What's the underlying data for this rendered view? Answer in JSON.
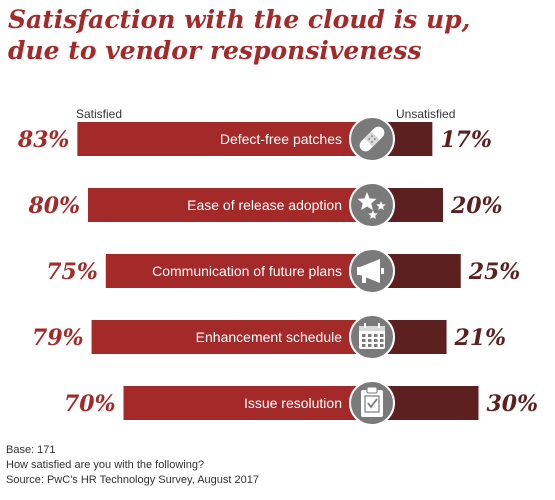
{
  "title_line1": "Satisfaction with the cloud is up,",
  "title_line2": "due to vendor responsiveness",
  "labels": {
    "satisfied": "Satisfied",
    "unsatisfied": "Unsatisfied"
  },
  "colors": {
    "satisfied": "#a42a2a",
    "unsatisfied": "#5c2020",
    "icon_circle": "#7a7a7a",
    "title": "#a42a2a"
  },
  "chart_data": {
    "type": "bar",
    "orientation": "horizontal-diverging",
    "categories": [
      "Defect-free patches",
      "Ease of release adoption",
      "Communication of future plans",
      "Enhancement schedule",
      "Issue resolution"
    ],
    "series": [
      {
        "name": "Satisfied",
        "values": [
          83,
          80,
          75,
          79,
          70
        ],
        "labels": [
          "83%",
          "80%",
          "75%",
          "79%",
          "70%"
        ]
      },
      {
        "name": "Unsatisfied",
        "values": [
          17,
          20,
          25,
          21,
          30
        ],
        "labels": [
          "17%",
          "20%",
          "25%",
          "21%",
          "30%"
        ]
      }
    ],
    "icons": [
      "bandage-icon",
      "stars-icon",
      "megaphone-icon",
      "calendar-icon",
      "clipboard-icon"
    ],
    "unit": "%"
  },
  "footer": {
    "base": "Base: 171",
    "question": "How satisfied are you with the following?",
    "source": "Source: PwC's HR Technology Survey, August 2017"
  }
}
